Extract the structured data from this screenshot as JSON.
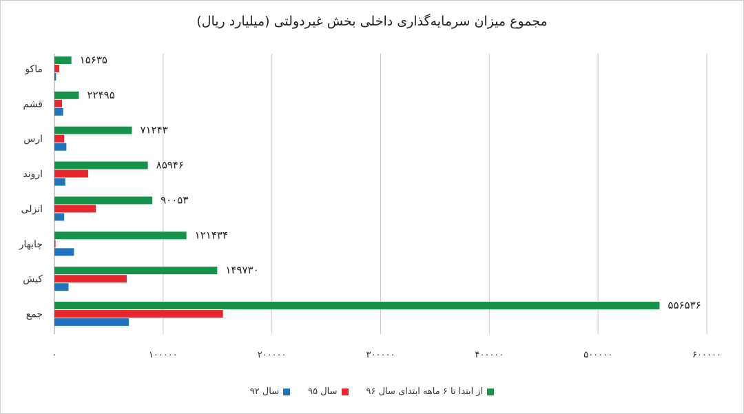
{
  "chart_data": {
    "type": "bar",
    "orientation": "horizontal",
    "title": "مجموع میزان سرمایه‌گذاری داخلی بخش غیردولتی (میلیارد ریال)",
    "categories": [
      "ماکو",
      "قشم",
      "ارس",
      "اروند",
      "انزلی",
      "چابهار",
      "کیش",
      "جمع"
    ],
    "series": [
      {
        "name": "از ابتدا تا ۶ ماهه ابتدای سال ۹۶",
        "color": "#16924a",
        "values": [
          15635,
          22495,
          71243,
          85946,
          90053,
          121434,
          149730,
          556536
        ]
      },
      {
        "name": "سال ۹۵",
        "color": "#e8262e",
        "values": [
          4500,
          7000,
          9000,
          31000,
          38000,
          1000,
          66500,
          155000
        ]
      },
      {
        "name": "سال ۹۲",
        "color": "#1f74bb",
        "values": [
          1500,
          8000,
          11000,
          10000,
          9000,
          18000,
          13000,
          68500
        ]
      }
    ],
    "value_labels": [
      "۱۵۶۳۵",
      "۲۲۴۹۵",
      "۷۱۲۴۳",
      "۸۵۹۴۶",
      "۹۰۰۵۳",
      "۱۲۱۴۳۴",
      "۱۴۹۷۳۰",
      "۵۵۶۵۳۶"
    ],
    "xlim": [
      0,
      600000
    ],
    "x_ticks": [
      0,
      100000,
      200000,
      300000,
      400000,
      500000,
      600000
    ],
    "x_tick_labels": [
      "۰",
      "۱۰۰۰۰۰",
      "۲۰۰۰۰۰",
      "۳۰۰۰۰۰",
      "۴۰۰۰۰۰",
      "۵۰۰۰۰۰",
      "۶۰۰۰۰۰"
    ],
    "grid": true,
    "legend_position": "bottom"
  }
}
